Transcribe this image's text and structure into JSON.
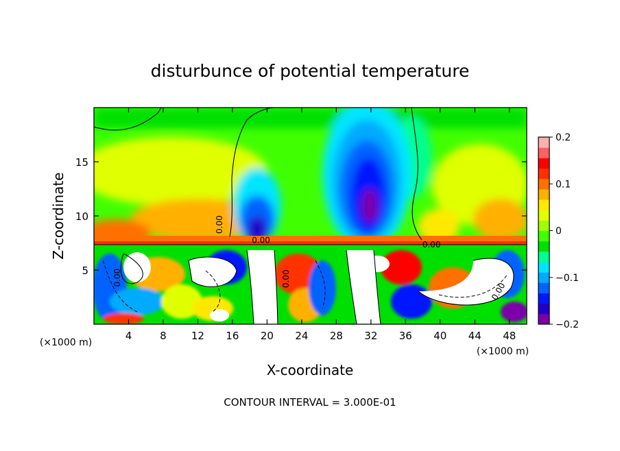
{
  "chart_data": {
    "type": "heatmap",
    "title": "disturbunce of potential temperature",
    "xlabel": "X-coordinate",
    "ylabel": "Z-coordinate",
    "x_unit_left": "(×1000 m)",
    "x_unit_right": "(×1000 m)",
    "xlim": [
      0,
      50
    ],
    "ylim": [
      0,
      20
    ],
    "x_ticks": [
      4,
      8,
      12,
      16,
      20,
      24,
      28,
      32,
      36,
      40,
      44,
      48
    ],
    "x_tick_labels": [
      "4",
      "8",
      "12",
      "16",
      "20",
      "24",
      "28",
      "32",
      "36",
      "40",
      "44",
      "48"
    ],
    "y_ticks": [
      5,
      10,
      15
    ],
    "y_tick_labels": [
      "5",
      "10",
      "15"
    ],
    "colorbar": {
      "range": [
        -0.2,
        0.2
      ],
      "ticks": [
        0.2,
        0.1,
        0,
        -0.1,
        -0.2
      ],
      "tick_labels": [
        "0.2",
        "0.1",
        "0",
        "−0.1",
        "−0.2"
      ],
      "colors": [
        "#7b00a8",
        "#2200c8",
        "#0018ff",
        "#0064ff",
        "#00aaff",
        "#00e5ff",
        "#00ff90",
        "#00e000",
        "#40ff00",
        "#a0ff00",
        "#e0ff00",
        "#ffe800",
        "#ffb000",
        "#ff7000",
        "#ff3000",
        "#ff0000",
        "#ff6060",
        "#ffb0b0"
      ]
    },
    "contour_labels": [
      {
        "text": "0.00",
        "x": 14.8,
        "y": 9.2,
        "angle": 90
      },
      {
        "text": "0.00",
        "x": 19.3,
        "y": 7.5,
        "angle": 0
      },
      {
        "text": "0.00",
        "x": 39.0,
        "y": 7.1,
        "angle": 0
      },
      {
        "text": "0.00",
        "x": 22.5,
        "y": 4.2,
        "angle": 90
      },
      {
        "text": "0.00",
        "x": 3.0,
        "y": 4.3,
        "angle": 90
      },
      {
        "text": "0.00",
        "x": 47.0,
        "y": 2.9,
        "angle": 60
      }
    ],
    "footer": "CONTOUR INTERVAL = 3.000E-01",
    "grid": false
  }
}
